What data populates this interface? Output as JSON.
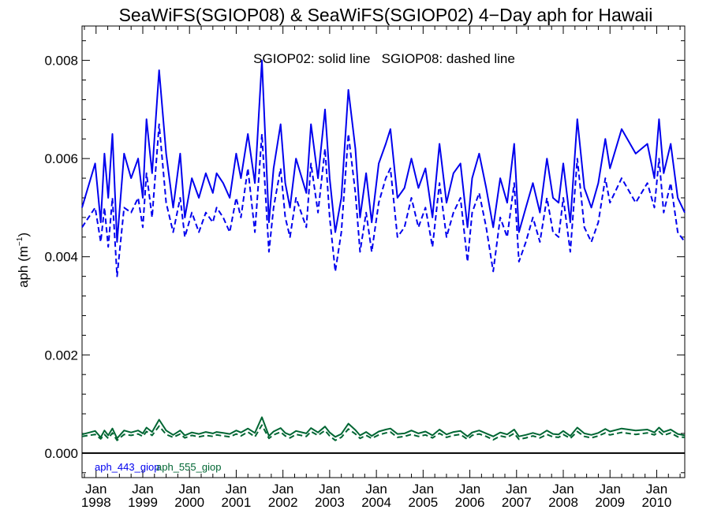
{
  "chart_data": {
    "type": "line",
    "title": "SeaWiFS(SGIOP08) & SeaWiFS(SGIOP02) 4−Day aph for Hawaii",
    "annotation": "SGIOP02: solid line   SGIOP08: dashed line",
    "ylabel_main": "aph (m",
    "ylabel_exp": "−1",
    "ylabel_close": ")",
    "xlim": [
      1997.7,
      2010.6
    ],
    "ylim": [
      -0.0005,
      0.0087
    ],
    "yticks": [
      0.0,
      0.002,
      0.004,
      0.006,
      0.008
    ],
    "ytick_labels": [
      "0.000",
      "0.002",
      "0.004",
      "0.006",
      "0.008"
    ],
    "xticks": [
      1998,
      1999,
      2000,
      2001,
      2002,
      2003,
      2004,
      2005,
      2006,
      2007,
      2008,
      2009,
      2010
    ],
    "xtick_labels_top": [
      "Jan",
      "Jan",
      "Jan",
      "Jan",
      "Jan",
      "Jan",
      "Jan",
      "Jan",
      "Jan",
      "Jan",
      "Jan",
      "Jan",
      "Jan"
    ],
    "xtick_labels_bottom": [
      "1998",
      "1999",
      "2000",
      "2001",
      "2002",
      "2003",
      "2004",
      "2005",
      "2006",
      "2007",
      "2008",
      "2009",
      "2010"
    ],
    "legend": [
      {
        "label": "aph_443_giop",
        "color": "#0000ee"
      },
      {
        "label": "aph_555_giop",
        "color": "#006633"
      }
    ],
    "series": [
      {
        "name": "aph_443_giop",
        "variant": "SGIOP02",
        "color": "#0000ee",
        "dash": false,
        "x": [
          1997.7,
          1997.98,
          1998.1,
          1998.18,
          1998.26,
          1998.35,
          1998.45,
          1998.6,
          1998.75,
          1998.9,
          1999.0,
          1999.08,
          1999.2,
          1999.35,
          1999.5,
          1999.65,
          1999.8,
          1999.9,
          2000.05,
          2000.2,
          2000.35,
          2000.5,
          2000.58,
          2000.72,
          2000.86,
          2001.0,
          2001.1,
          2001.25,
          2001.4,
          2001.55,
          2001.7,
          2001.8,
          2001.95,
          2002.05,
          2002.15,
          2002.28,
          2002.5,
          2002.6,
          2002.75,
          2002.9,
          2003.0,
          2003.12,
          2003.25,
          2003.4,
          2003.55,
          2003.65,
          2003.78,
          2003.9,
          2004.05,
          2004.2,
          2004.3,
          2004.45,
          2004.6,
          2004.75,
          2004.9,
          2005.05,
          2005.2,
          2005.35,
          2005.5,
          2005.65,
          2005.8,
          2005.95,
          2006.05,
          2006.2,
          2006.35,
          2006.5,
          2006.65,
          2006.8,
          2006.95,
          2007.05,
          2007.2,
          2007.35,
          2007.5,
          2007.65,
          2007.78,
          2007.9,
          2008.0,
          2008.15,
          2008.3,
          2008.45,
          2008.6,
          2008.75,
          2008.9,
          2009.0,
          2009.25,
          2009.55,
          2009.8,
          2009.95,
          2010.05,
          2010.15,
          2010.3,
          2010.45,
          2010.6
        ],
        "y": [
          0.005,
          0.0059,
          0.0047,
          0.0061,
          0.0052,
          0.0065,
          0.0043,
          0.0061,
          0.0056,
          0.006,
          0.0052,
          0.0068,
          0.0057,
          0.0078,
          0.0061,
          0.005,
          0.0061,
          0.0048,
          0.0056,
          0.0052,
          0.0057,
          0.0053,
          0.0057,
          0.0055,
          0.0052,
          0.0061,
          0.0056,
          0.0065,
          0.0055,
          0.008,
          0.0047,
          0.0058,
          0.0067,
          0.0055,
          0.005,
          0.006,
          0.0053,
          0.0067,
          0.0056,
          0.007,
          0.0056,
          0.0045,
          0.0052,
          0.0074,
          0.0062,
          0.0048,
          0.0057,
          0.0047,
          0.0059,
          0.0063,
          0.0066,
          0.0052,
          0.0054,
          0.006,
          0.0054,
          0.0058,
          0.0048,
          0.0063,
          0.0051,
          0.0057,
          0.0059,
          0.0046,
          0.0056,
          0.0061,
          0.0054,
          0.0046,
          0.0056,
          0.0051,
          0.0063,
          0.0045,
          0.005,
          0.0055,
          0.0049,
          0.006,
          0.0052,
          0.0051,
          0.0059,
          0.0047,
          0.0068,
          0.0054,
          0.005,
          0.0055,
          0.0064,
          0.0058,
          0.0066,
          0.0061,
          0.0063,
          0.0056,
          0.0068,
          0.0057,
          0.0063,
          0.0052,
          0.0049
        ]
      },
      {
        "name": "aph_443_giop",
        "variant": "SGIOP08",
        "color": "#0000ee",
        "dash": true,
        "x": [
          1997.7,
          1997.98,
          1998.1,
          1998.18,
          1998.26,
          1998.35,
          1998.45,
          1998.6,
          1998.75,
          1998.9,
          1999.0,
          1999.08,
          1999.2,
          1999.35,
          1999.5,
          1999.65,
          1999.8,
          1999.9,
          2000.05,
          2000.2,
          2000.35,
          2000.5,
          2000.58,
          2000.72,
          2000.86,
          2001.0,
          2001.1,
          2001.25,
          2001.4,
          2001.55,
          2001.7,
          2001.8,
          2001.95,
          2002.05,
          2002.15,
          2002.28,
          2002.5,
          2002.6,
          2002.75,
          2002.9,
          2003.0,
          2003.12,
          2003.25,
          2003.4,
          2003.55,
          2003.65,
          2003.78,
          2003.9,
          2004.05,
          2004.2,
          2004.3,
          2004.45,
          2004.6,
          2004.75,
          2004.9,
          2005.05,
          2005.2,
          2005.35,
          2005.5,
          2005.65,
          2005.8,
          2005.95,
          2006.05,
          2006.2,
          2006.35,
          2006.5,
          2006.65,
          2006.8,
          2006.95,
          2007.05,
          2007.2,
          2007.35,
          2007.5,
          2007.65,
          2007.78,
          2007.9,
          2008.0,
          2008.15,
          2008.3,
          2008.45,
          2008.6,
          2008.75,
          2008.9,
          2009.0,
          2009.25,
          2009.55,
          2009.8,
          2009.95,
          2010.05,
          2010.15,
          2010.3,
          2010.45,
          2010.6
        ],
        "y": [
          0.0046,
          0.005,
          0.0043,
          0.005,
          0.0042,
          0.0052,
          0.0036,
          0.005,
          0.0049,
          0.0052,
          0.0046,
          0.0057,
          0.0048,
          0.0067,
          0.0051,
          0.0045,
          0.0052,
          0.0044,
          0.0049,
          0.0045,
          0.0049,
          0.0047,
          0.005,
          0.0048,
          0.0045,
          0.0052,
          0.0048,
          0.0058,
          0.0045,
          0.0065,
          0.0041,
          0.005,
          0.0058,
          0.0048,
          0.0044,
          0.0052,
          0.0046,
          0.0059,
          0.0049,
          0.0062,
          0.0048,
          0.0037,
          0.0045,
          0.0065,
          0.0053,
          0.0041,
          0.0049,
          0.0041,
          0.0051,
          0.0056,
          0.0058,
          0.0044,
          0.0046,
          0.0052,
          0.0046,
          0.005,
          0.0042,
          0.0055,
          0.0044,
          0.0049,
          0.0052,
          0.0039,
          0.0049,
          0.0053,
          0.0046,
          0.0037,
          0.0048,
          0.0044,
          0.0055,
          0.0039,
          0.0043,
          0.0048,
          0.0043,
          0.0052,
          0.0045,
          0.0044,
          0.0052,
          0.0041,
          0.006,
          0.0046,
          0.0043,
          0.0047,
          0.0056,
          0.0051,
          0.0056,
          0.0051,
          0.0055,
          0.005,
          0.006,
          0.0049,
          0.0055,
          0.0045,
          0.0043
        ]
      },
      {
        "name": "aph_555_giop",
        "variant": "SGIOP02",
        "color": "#006633",
        "dash": false,
        "x": [
          1997.7,
          1997.98,
          1998.1,
          1998.18,
          1998.26,
          1998.35,
          1998.45,
          1998.6,
          1998.75,
          1998.9,
          1999.0,
          1999.08,
          1999.2,
          1999.35,
          1999.5,
          1999.65,
          1999.8,
          1999.9,
          2000.05,
          2000.2,
          2000.35,
          2000.5,
          2000.58,
          2000.72,
          2000.86,
          2001.0,
          2001.1,
          2001.25,
          2001.4,
          2001.55,
          2001.7,
          2001.8,
          2001.95,
          2002.05,
          2002.15,
          2002.28,
          2002.5,
          2002.6,
          2002.75,
          2002.9,
          2003.0,
          2003.12,
          2003.25,
          2003.4,
          2003.55,
          2003.65,
          2003.78,
          2003.9,
          2004.05,
          2004.2,
          2004.3,
          2004.45,
          2004.6,
          2004.75,
          2004.9,
          2005.05,
          2005.2,
          2005.35,
          2005.5,
          2005.65,
          2005.8,
          2005.95,
          2006.05,
          2006.2,
          2006.35,
          2006.5,
          2006.65,
          2006.8,
          2006.95,
          2007.05,
          2007.2,
          2007.35,
          2007.5,
          2007.65,
          2007.78,
          2007.9,
          2008.0,
          2008.15,
          2008.3,
          2008.45,
          2008.6,
          2008.75,
          2008.9,
          2009.0,
          2009.25,
          2009.55,
          2009.8,
          2009.95,
          2010.05,
          2010.15,
          2010.3,
          2010.45,
          2010.6
        ],
        "y": [
          0.00038,
          0.00045,
          0.00032,
          0.00046,
          0.00036,
          0.0005,
          0.0003,
          0.00046,
          0.00042,
          0.00046,
          0.0004,
          0.00052,
          0.00043,
          0.00068,
          0.00046,
          0.00037,
          0.00046,
          0.00036,
          0.00042,
          0.00039,
          0.00043,
          0.0004,
          0.00043,
          0.00041,
          0.00039,
          0.00046,
          0.00042,
          0.0005,
          0.00041,
          0.00073,
          0.00035,
          0.00044,
          0.00051,
          0.00041,
          0.00037,
          0.00045,
          0.0004,
          0.00051,
          0.00042,
          0.00054,
          0.00042,
          0.00033,
          0.00039,
          0.0006,
          0.00047,
          0.00036,
          0.00043,
          0.00035,
          0.00044,
          0.00048,
          0.0005,
          0.00039,
          0.0004,
          0.00046,
          0.0004,
          0.00044,
          0.00036,
          0.00048,
          0.00038,
          0.00043,
          0.00045,
          0.00034,
          0.00042,
          0.00046,
          0.0004,
          0.00034,
          0.00042,
          0.00038,
          0.00048,
          0.00034,
          0.00037,
          0.00041,
          0.00037,
          0.00046,
          0.00039,
          0.00038,
          0.00045,
          0.00035,
          0.00052,
          0.0004,
          0.00037,
          0.00041,
          0.00049,
          0.00044,
          0.0005,
          0.00046,
          0.00048,
          0.00042,
          0.00052,
          0.00043,
          0.00048,
          0.00039,
          0.00036
        ]
      },
      {
        "name": "aph_555_giop",
        "variant": "SGIOP08",
        "color": "#006633",
        "dash": true,
        "x": [
          1997.7,
          1997.98,
          1998.1,
          1998.18,
          1998.26,
          1998.35,
          1998.45,
          1998.6,
          1998.75,
          1998.9,
          1999.0,
          1999.08,
          1999.2,
          1999.35,
          1999.5,
          1999.65,
          1999.8,
          1999.9,
          2000.05,
          2000.2,
          2000.35,
          2000.5,
          2000.58,
          2000.72,
          2000.86,
          2001.0,
          2001.1,
          2001.25,
          2001.4,
          2001.55,
          2001.7,
          2001.8,
          2001.95,
          2002.05,
          2002.15,
          2002.28,
          2002.5,
          2002.6,
          2002.75,
          2002.9,
          2003.0,
          2003.12,
          2003.25,
          2003.4,
          2003.55,
          2003.65,
          2003.78,
          2003.9,
          2004.05,
          2004.2,
          2004.3,
          2004.45,
          2004.6,
          2004.75,
          2004.9,
          2005.05,
          2005.2,
          2005.35,
          2005.5,
          2005.65,
          2005.8,
          2005.95,
          2006.05,
          2006.2,
          2006.35,
          2006.5,
          2006.65,
          2006.8,
          2006.95,
          2007.05,
          2007.2,
          2007.35,
          2007.5,
          2007.65,
          2007.78,
          2007.9,
          2008.0,
          2008.15,
          2008.3,
          2008.45,
          2008.6,
          2008.75,
          2008.9,
          2009.0,
          2009.25,
          2009.55,
          2009.8,
          2009.95,
          2010.05,
          2010.15,
          2010.3,
          2010.45,
          2010.6
        ],
        "y": [
          0.00034,
          0.00038,
          0.00029,
          0.00038,
          0.0003,
          0.00041,
          0.00026,
          0.00038,
          0.00036,
          0.00039,
          0.00034,
          0.00044,
          0.00036,
          0.00055,
          0.00038,
          0.00032,
          0.00039,
          0.00031,
          0.00036,
          0.00033,
          0.00036,
          0.00034,
          0.00037,
          0.00035,
          0.00033,
          0.00039,
          0.00035,
          0.00043,
          0.00033,
          0.00057,
          0.0003,
          0.00037,
          0.00043,
          0.00035,
          0.00031,
          0.00038,
          0.00034,
          0.00044,
          0.00036,
          0.00046,
          0.00035,
          0.00026,
          0.00032,
          0.00049,
          0.00039,
          0.0003,
          0.00036,
          0.0003,
          0.00037,
          0.00041,
          0.00043,
          0.00032,
          0.00034,
          0.00038,
          0.00034,
          0.00037,
          0.00031,
          0.0004,
          0.00032,
          0.00036,
          0.00038,
          0.00028,
          0.00036,
          0.00039,
          0.00034,
          0.00027,
          0.00035,
          0.00032,
          0.0004,
          0.00028,
          0.00031,
          0.00035,
          0.00031,
          0.00038,
          0.00033,
          0.00032,
          0.00038,
          0.0003,
          0.00044,
          0.00034,
          0.00031,
          0.00035,
          0.00041,
          0.00037,
          0.00042,
          0.00038,
          0.00041,
          0.00037,
          0.00044,
          0.00036,
          0.00041,
          0.00033,
          0.00032
        ]
      }
    ]
  }
}
